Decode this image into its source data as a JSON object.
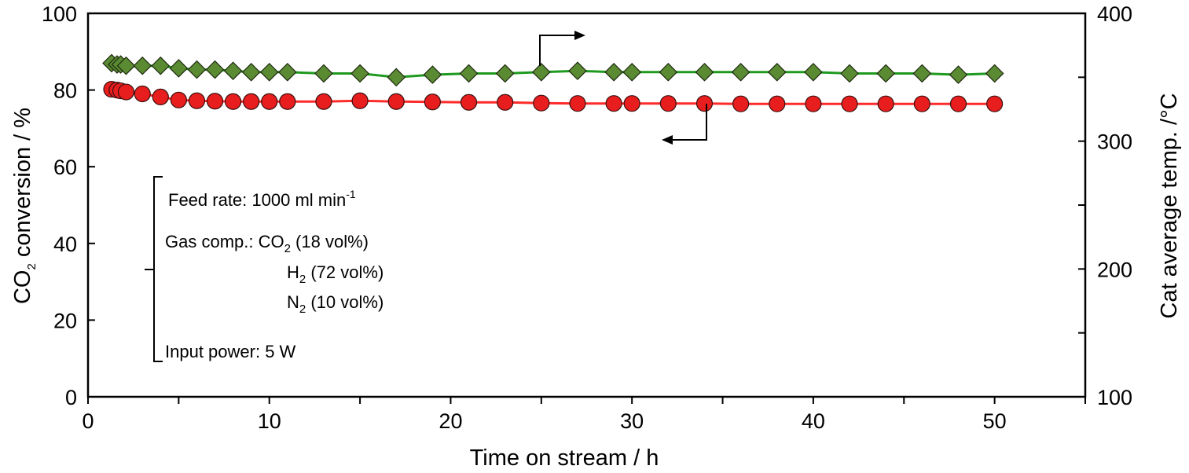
{
  "chart_data": {
    "type": "scatter",
    "x_label": "Time on stream / h",
    "y_left_label": {
      "main": "CO",
      "sub": "2",
      "rest": " conversion / %"
    },
    "y_right_label": "Cat average temp. /°C",
    "x_range": [
      0,
      55
    ],
    "x_ticks": [
      "0",
      "10",
      "20",
      "30",
      "40",
      "50"
    ],
    "y_left_range": [
      0,
      100
    ],
    "y_left_ticks": [
      "0",
      "20",
      "40",
      "60",
      "80",
      "100"
    ],
    "y_right_range": [
      100,
      400
    ],
    "y_right_ticks": [
      "100",
      "200",
      "300",
      "400"
    ],
    "series": [
      {
        "axis": "left",
        "marker": "circle",
        "color": "#e81d1d",
        "line_color": "#ff2a2a",
        "points": [
          [
            1.3,
            80.2
          ],
          [
            1.6,
            80.0
          ],
          [
            1.8,
            79.8
          ],
          [
            2.1,
            79.5
          ],
          [
            3.0,
            79.0
          ],
          [
            4.0,
            78.2
          ],
          [
            5.0,
            77.4
          ],
          [
            6.0,
            77.2
          ],
          [
            7.0,
            77.1
          ],
          [
            8.0,
            77.0
          ],
          [
            9.0,
            77.0
          ],
          [
            10.0,
            77.0
          ],
          [
            11.0,
            77.0
          ],
          [
            13.0,
            77.0
          ],
          [
            15.0,
            77.2
          ],
          [
            17.0,
            77.0
          ],
          [
            19.0,
            76.9
          ],
          [
            21.0,
            76.8
          ],
          [
            23.0,
            76.8
          ],
          [
            25.0,
            76.6
          ],
          [
            27.0,
            76.5
          ],
          [
            29.0,
            76.5
          ],
          [
            30.0,
            76.5
          ],
          [
            32.0,
            76.5
          ],
          [
            34.0,
            76.5
          ],
          [
            36.0,
            76.4
          ],
          [
            38.0,
            76.4
          ],
          [
            40.0,
            76.4
          ],
          [
            42.0,
            76.4
          ],
          [
            44.0,
            76.4
          ],
          [
            46.0,
            76.4
          ],
          [
            48.0,
            76.4
          ],
          [
            50.0,
            76.4
          ]
        ]
      },
      {
        "axis": "right",
        "marker": "diamond",
        "color": "#5a8a32",
        "line_color": "#1f9a1f",
        "points": [
          [
            1.3,
            361
          ],
          [
            1.6,
            360
          ],
          [
            1.8,
            360
          ],
          [
            2.1,
            359
          ],
          [
            3.0,
            359
          ],
          [
            4.0,
            359
          ],
          [
            5.0,
            357
          ],
          [
            6.0,
            356
          ],
          [
            7.0,
            356
          ],
          [
            8.0,
            355
          ],
          [
            9.0,
            354
          ],
          [
            10.0,
            354
          ],
          [
            11.0,
            354
          ],
          [
            13.0,
            353
          ],
          [
            15.0,
            353
          ],
          [
            17.0,
            350
          ],
          [
            19.0,
            352
          ],
          [
            21.0,
            353
          ],
          [
            23.0,
            353
          ],
          [
            25.0,
            354
          ],
          [
            27.0,
            355
          ],
          [
            29.0,
            354
          ],
          [
            30.0,
            354
          ],
          [
            32.0,
            354
          ],
          [
            34.0,
            354
          ],
          [
            36.0,
            354
          ],
          [
            38.0,
            354
          ],
          [
            40.0,
            354
          ],
          [
            42.0,
            353
          ],
          [
            44.0,
            353
          ],
          [
            46.0,
            353
          ],
          [
            48.0,
            352
          ],
          [
            50.0,
            353
          ]
        ]
      }
    ]
  },
  "annotation": {
    "feed_rate_prefix": "Feed rate: 1000 ml min",
    "feed_rate_sup": "-1",
    "gas_comp_label": "Gas comp.: CO",
    "gas_comp_sub": "2",
    "gas_comp_rest": " (18 vol%)",
    "h2_main": "H",
    "h2_sub": "2",
    "h2_rest": " (72 vol%)",
    "n2_main": "N",
    "n2_sub": "2",
    "n2_rest": " (10 vol%)",
    "input_power": "Input power: 5 W"
  }
}
